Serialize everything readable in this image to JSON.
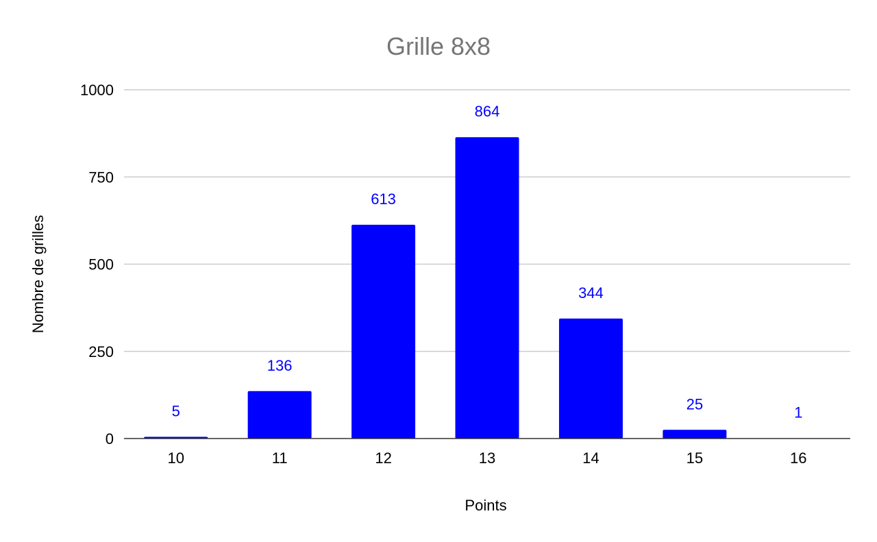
{
  "chart_data": {
    "type": "bar",
    "title": "Grille 8x8",
    "xlabel": "Points",
    "ylabel": "Nombre de grilles",
    "categories": [
      "10",
      "11",
      "12",
      "13",
      "14",
      "15",
      "16"
    ],
    "values": [
      5,
      136,
      613,
      864,
      344,
      25,
      1
    ],
    "data_labels": [
      "5",
      "136",
      "613",
      "864",
      "344",
      "25",
      "1"
    ],
    "ylim": [
      0,
      1000
    ],
    "yticks": [
      0,
      250,
      500,
      750,
      1000
    ],
    "ytick_labels": [
      "0",
      "250",
      "500",
      "750",
      "1000"
    ],
    "grid": true,
    "legend": "none",
    "colors": {
      "bar": "#0000ff",
      "data_label": "#0000ff",
      "title": "#757575",
      "grid": "#cccccc",
      "baseline": "#333333"
    }
  }
}
